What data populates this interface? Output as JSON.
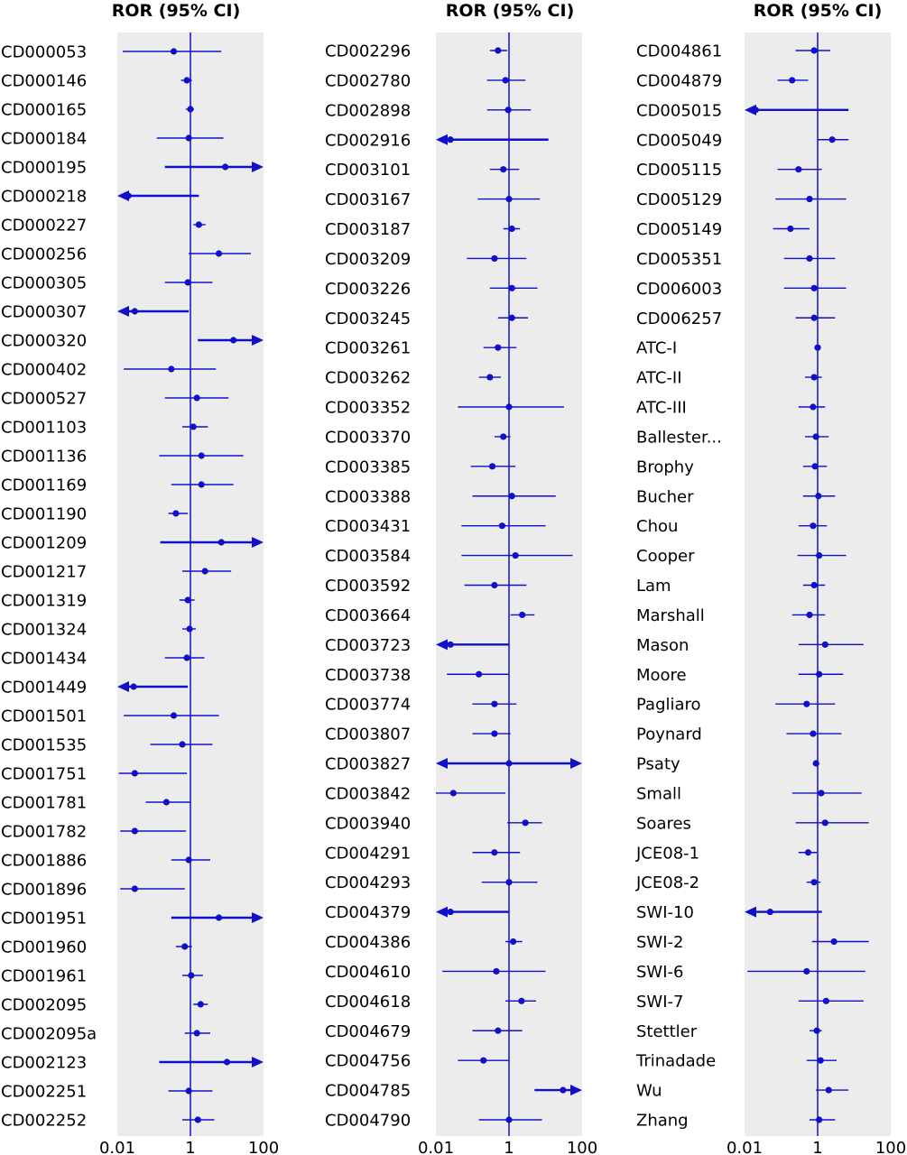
{
  "chart_data": {
    "type": "forest",
    "x_scale": "log10",
    "xlim": [
      0.01,
      100
    ],
    "reference_line": 1,
    "x_ticks": [
      "0.01",
      "1",
      "100"
    ],
    "colors": {
      "estimate": "#1010c8",
      "panel_background": "#ececec"
    },
    "panels": [
      {
        "title": "ROR (95% CI)",
        "studies": [
          {
            "label": "CD000053",
            "or": 0.35,
            "lower": 0.014,
            "upper": 7
          },
          {
            "label": "CD000146",
            "or": 0.8,
            "lower": 0.55,
            "upper": 1.1
          },
          {
            "label": "CD000165",
            "or": 1.0,
            "lower": 0.75,
            "upper": 1.25
          },
          {
            "label": "CD000184",
            "or": 0.9,
            "lower": 0.12,
            "upper": 8
          },
          {
            "label": "CD000195",
            "or": 9,
            "lower": 0.2,
            "upper": 100,
            "upper_arrow": true
          },
          {
            "label": "CD000218",
            "or": 0.02,
            "lower": 0.01,
            "upper": 1.7,
            "lower_arrow": true
          },
          {
            "label": "CD000227",
            "or": 1.7,
            "lower": 1.2,
            "upper": 2.6
          },
          {
            "label": "CD000256",
            "or": 6,
            "lower": 0.9,
            "upper": 45
          },
          {
            "label": "CD000305",
            "or": 0.85,
            "lower": 0.2,
            "upper": 4
          },
          {
            "label": "CD000307",
            "or": 0.03,
            "lower": 0.01,
            "upper": 0.9,
            "lower_arrow": true
          },
          {
            "label": "CD000320",
            "or": 15,
            "lower": 1.6,
            "upper": 100,
            "upper_arrow": true
          },
          {
            "label": "CD000402",
            "or": 0.3,
            "lower": 0.015,
            "upper": 5
          },
          {
            "label": "CD000527",
            "or": 1.5,
            "lower": 0.2,
            "upper": 11
          },
          {
            "label": "CD001103",
            "or": 1.2,
            "lower": 0.6,
            "upper": 3
          },
          {
            "label": "CD001136",
            "or": 2,
            "lower": 0.14,
            "upper": 28
          },
          {
            "label": "CD001169",
            "or": 2,
            "lower": 0.3,
            "upper": 15
          },
          {
            "label": "CD001190",
            "or": 0.4,
            "lower": 0.25,
            "upper": 0.85
          },
          {
            "label": "CD001209",
            "or": 7,
            "lower": 0.15,
            "upper": 100,
            "upper_arrow": true
          },
          {
            "label": "CD001217",
            "or": 2.5,
            "lower": 0.6,
            "upper": 13
          },
          {
            "label": "CD001319",
            "or": 0.85,
            "lower": 0.5,
            "upper": 1.3
          },
          {
            "label": "CD001324",
            "or": 0.95,
            "lower": 0.6,
            "upper": 1.4
          },
          {
            "label": "CD001434",
            "or": 0.8,
            "lower": 0.2,
            "upper": 2.4
          },
          {
            "label": "CD001449",
            "or": 0.028,
            "lower": 0.01,
            "upper": 0.85,
            "lower_arrow": true
          },
          {
            "label": "CD001501",
            "or": 0.35,
            "lower": 0.015,
            "upper": 6
          },
          {
            "label": "CD001535",
            "or": 0.6,
            "lower": 0.08,
            "upper": 4
          },
          {
            "label": "CD001751",
            "or": 0.03,
            "lower": 0.011,
            "upper": 0.8
          },
          {
            "label": "CD001781",
            "or": 0.22,
            "lower": 0.06,
            "upper": 1
          },
          {
            "label": "CD001782",
            "or": 0.03,
            "lower": 0.012,
            "upper": 0.75
          },
          {
            "label": "CD001886",
            "or": 0.9,
            "lower": 0.3,
            "upper": 3.5
          },
          {
            "label": "CD001896",
            "or": 0.03,
            "lower": 0.012,
            "upper": 0.7
          },
          {
            "label": "CD001951",
            "or": 6,
            "lower": 0.3,
            "upper": 100,
            "upper_arrow": true
          },
          {
            "label": "CD001960",
            "or": 0.7,
            "lower": 0.4,
            "upper": 1.1
          },
          {
            "label": "CD001961",
            "or": 1.05,
            "lower": 0.6,
            "upper": 2.2
          },
          {
            "label": "CD002095",
            "or": 1.9,
            "lower": 1.2,
            "upper": 3
          },
          {
            "label": "CD002095a",
            "or": 1.5,
            "lower": 0.7,
            "upper": 3.5
          },
          {
            "label": "CD002123",
            "or": 10,
            "lower": 0.14,
            "upper": 100,
            "upper_arrow": true
          },
          {
            "label": "CD002251",
            "or": 0.9,
            "lower": 0.25,
            "upper": 4
          },
          {
            "label": "CD002252",
            "or": 1.6,
            "lower": 0.6,
            "upper": 4.5
          }
        ]
      },
      {
        "title": "ROR (95% CI)",
        "studies": [
          {
            "label": "CD002296",
            "or": 0.5,
            "lower": 0.3,
            "upper": 0.9
          },
          {
            "label": "CD002780",
            "or": 0.8,
            "lower": 0.25,
            "upper": 2.8
          },
          {
            "label": "CD002898",
            "or": 0.95,
            "lower": 0.25,
            "upper": 4
          },
          {
            "label": "CD002916",
            "or": 0.025,
            "lower": 0.01,
            "upper": 12,
            "lower_arrow": true
          },
          {
            "label": "CD003101",
            "or": 0.7,
            "lower": 0.3,
            "upper": 1.9
          },
          {
            "label": "CD003167",
            "or": 1.0,
            "lower": 0.14,
            "upper": 7
          },
          {
            "label": "CD003187",
            "or": 1.2,
            "lower": 0.7,
            "upper": 2
          },
          {
            "label": "CD003209",
            "or": 0.4,
            "lower": 0.07,
            "upper": 3
          },
          {
            "label": "CD003226",
            "or": 1.2,
            "lower": 0.3,
            "upper": 6
          },
          {
            "label": "CD003245",
            "or": 1.2,
            "lower": 0.5,
            "upper": 3.3
          },
          {
            "label": "CD003261",
            "or": 0.5,
            "lower": 0.2,
            "upper": 1.6
          },
          {
            "label": "CD003262",
            "or": 0.3,
            "lower": 0.15,
            "upper": 0.6
          },
          {
            "label": "CD003352",
            "or": 1.0,
            "lower": 0.04,
            "upper": 32
          },
          {
            "label": "CD003370",
            "or": 0.7,
            "lower": 0.4,
            "upper": 1.1
          },
          {
            "label": "CD003385",
            "or": 0.35,
            "lower": 0.09,
            "upper": 1.5
          },
          {
            "label": "CD003388",
            "or": 1.2,
            "lower": 0.1,
            "upper": 19
          },
          {
            "label": "CD003431",
            "or": 0.65,
            "lower": 0.05,
            "upper": 10
          },
          {
            "label": "CD003584",
            "or": 1.5,
            "lower": 0.05,
            "upper": 55
          },
          {
            "label": "CD003592",
            "or": 0.4,
            "lower": 0.06,
            "upper": 3
          },
          {
            "label": "CD003664",
            "or": 2.3,
            "lower": 1.1,
            "upper": 5
          },
          {
            "label": "CD003723",
            "or": 0.025,
            "lower": 0.01,
            "upper": 1.0,
            "lower_arrow": true
          },
          {
            "label": "CD003738",
            "or": 0.15,
            "lower": 0.02,
            "upper": 1.0
          },
          {
            "label": "CD003774",
            "or": 0.4,
            "lower": 0.1,
            "upper": 1.6
          },
          {
            "label": "CD003807",
            "or": 0.4,
            "lower": 0.1,
            "upper": 1.1
          },
          {
            "label": "CD003827",
            "or": 1.0,
            "lower": 0.01,
            "upper": 100,
            "lower_arrow": true,
            "upper_arrow": true
          },
          {
            "label": "CD003842",
            "or": 0.03,
            "lower": 0.01,
            "upper": 0.8
          },
          {
            "label": "CD003940",
            "or": 2.8,
            "lower": 0.9,
            "upper": 8
          },
          {
            "label": "CD004291",
            "or": 0.4,
            "lower": 0.1,
            "upper": 2
          },
          {
            "label": "CD004293",
            "or": 1.0,
            "lower": 0.18,
            "upper": 6
          },
          {
            "label": "CD004379",
            "or": 0.025,
            "lower": 0.01,
            "upper": 1.0,
            "lower_arrow": true
          },
          {
            "label": "CD004386",
            "or": 1.3,
            "lower": 0.8,
            "upper": 2.3
          },
          {
            "label": "CD004610",
            "or": 0.45,
            "lower": 0.015,
            "upper": 10
          },
          {
            "label": "CD004618",
            "or": 2.2,
            "lower": 0.8,
            "upper": 5.5
          },
          {
            "label": "CD004679",
            "or": 0.5,
            "lower": 0.1,
            "upper": 2.3
          },
          {
            "label": "CD004756",
            "or": 0.2,
            "lower": 0.04,
            "upper": 1.0
          },
          {
            "label": "CD004785",
            "or": 30,
            "lower": 5,
            "upper": 100,
            "upper_arrow": true
          },
          {
            "label": "CD004790",
            "or": 1.0,
            "lower": 0.15,
            "upper": 8
          }
        ]
      },
      {
        "title": "ROR (95% CI)",
        "studies": [
          {
            "label": "CD004861",
            "or": 0.8,
            "lower": 0.25,
            "upper": 2.2
          },
          {
            "label": "CD004879",
            "or": 0.2,
            "lower": 0.08,
            "upper": 0.55
          },
          {
            "label": "CD005015",
            "or": 0.02,
            "lower": 0.01,
            "upper": 7,
            "lower_arrow": true
          },
          {
            "label": "CD005049",
            "or": 2.5,
            "lower": 1.0,
            "upper": 7
          },
          {
            "label": "CD005115",
            "or": 0.3,
            "lower": 0.08,
            "upper": 1.3
          },
          {
            "label": "CD005129",
            "or": 0.6,
            "lower": 0.07,
            "upper": 6
          },
          {
            "label": "CD005149",
            "or": 0.18,
            "lower": 0.06,
            "upper": 0.6
          },
          {
            "label": "CD005351",
            "or": 0.6,
            "lower": 0.12,
            "upper": 3
          },
          {
            "label": "CD006003",
            "or": 0.8,
            "lower": 0.12,
            "upper": 6
          },
          {
            "label": "CD006257",
            "or": 0.8,
            "lower": 0.25,
            "upper": 3
          },
          {
            "label": "ATC-I",
            "or": 1.0,
            "lower": 0.85,
            "upper": 1.2
          },
          {
            "label": "ATC-II",
            "or": 0.8,
            "lower": 0.45,
            "upper": 1.3
          },
          {
            "label": "ATC-III",
            "or": 0.75,
            "lower": 0.3,
            "upper": 1.6
          },
          {
            "label": "Ballester...",
            "or": 0.9,
            "lower": 0.45,
            "upper": 2
          },
          {
            "label": "Brophy",
            "or": 0.85,
            "lower": 0.4,
            "upper": 1.8
          },
          {
            "label": "Bucher",
            "or": 1.05,
            "lower": 0.4,
            "upper": 3
          },
          {
            "label": "Chou",
            "or": 0.75,
            "lower": 0.3,
            "upper": 1.8
          },
          {
            "label": "Cooper",
            "or": 1.1,
            "lower": 0.28,
            "upper": 6
          },
          {
            "label": "Lam",
            "or": 0.8,
            "lower": 0.4,
            "upper": 1.6
          },
          {
            "label": "Marshall",
            "or": 0.6,
            "lower": 0.2,
            "upper": 1.6
          },
          {
            "label": "Mason",
            "or": 1.6,
            "lower": 0.3,
            "upper": 18
          },
          {
            "label": "Moore",
            "or": 1.1,
            "lower": 0.3,
            "upper": 5
          },
          {
            "label": "Pagliaro",
            "or": 0.5,
            "lower": 0.07,
            "upper": 3
          },
          {
            "label": "Poynard",
            "or": 0.75,
            "lower": 0.14,
            "upper": 4.5
          },
          {
            "label": "Psaty",
            "or": 0.9,
            "lower": 0.75,
            "upper": 1.1
          },
          {
            "label": "Small",
            "or": 1.25,
            "lower": 0.2,
            "upper": 16
          },
          {
            "label": "Soares",
            "or": 1.6,
            "lower": 0.25,
            "upper": 25
          },
          {
            "label": "JCE08-1",
            "or": 0.55,
            "lower": 0.3,
            "upper": 0.95
          },
          {
            "label": "JCE08-2",
            "or": 0.8,
            "lower": 0.5,
            "upper": 1.2
          },
          {
            "label": "SWI-10",
            "or": 0.05,
            "lower": 0.01,
            "upper": 1.3,
            "lower_arrow": true
          },
          {
            "label": "SWI-2",
            "or": 2.8,
            "lower": 0.7,
            "upper": 25
          },
          {
            "label": "SWI-6",
            "or": 0.5,
            "lower": 0.012,
            "upper": 20
          },
          {
            "label": "SWI-7",
            "or": 1.7,
            "lower": 0.3,
            "upper": 18
          },
          {
            "label": "Stettler",
            "or": 0.95,
            "lower": 0.6,
            "upper": 1.3
          },
          {
            "label": "Trinadade",
            "or": 1.2,
            "lower": 0.5,
            "upper": 3.3
          },
          {
            "label": "Wu",
            "or": 2,
            "lower": 0.9,
            "upper": 7
          },
          {
            "label": "Zhang",
            "or": 1.1,
            "lower": 0.6,
            "upper": 3
          }
        ]
      }
    ]
  }
}
